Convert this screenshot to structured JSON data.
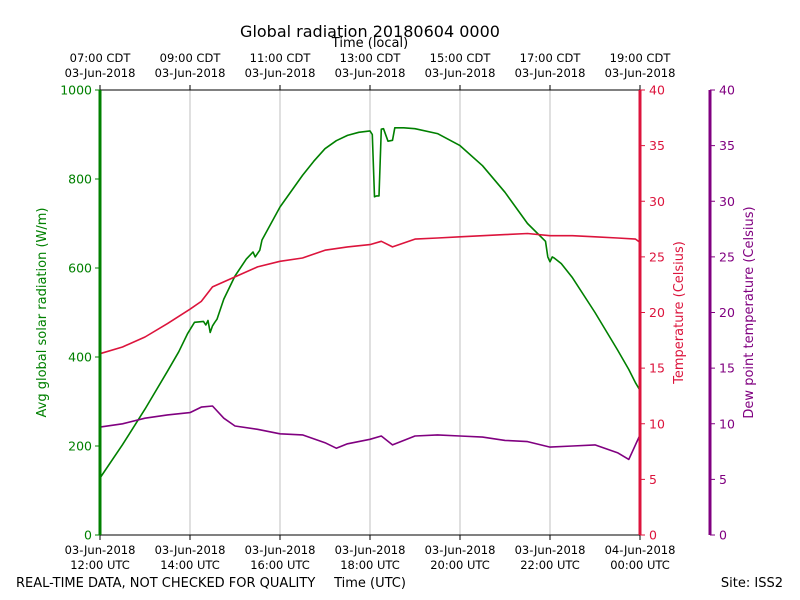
{
  "chart_data": {
    "type": "line",
    "title": "Global radiation 20180604 0000",
    "top_axis_label": "Time (local)",
    "xlabel": "Time (UTC)",
    "footer_left": "REAL-TIME DATA, NOT CHECKED FOR QUALITY",
    "footer_right": "Site: ISS2",
    "x_ticks_utc": [
      {
        "hour": 12,
        "date": "03-Jun-2018",
        "time": "12:00 UTC"
      },
      {
        "hour": 14,
        "date": "03-Jun-2018",
        "time": "14:00 UTC"
      },
      {
        "hour": 16,
        "date": "03-Jun-2018",
        "time": "16:00 UTC"
      },
      {
        "hour": 18,
        "date": "03-Jun-2018",
        "time": "18:00 UTC"
      },
      {
        "hour": 20,
        "date": "03-Jun-2018",
        "time": "20:00 UTC"
      },
      {
        "hour": 22,
        "date": "03-Jun-2018",
        "time": "22:00 UTC"
      },
      {
        "hour": 24,
        "date": "04-Jun-2018",
        "time": "00:00 UTC"
      }
    ],
    "x_ticks_local": [
      {
        "hour": 12,
        "time": "07:00 CDT",
        "date": "03-Jun-2018"
      },
      {
        "hour": 14,
        "time": "09:00 CDT",
        "date": "03-Jun-2018"
      },
      {
        "hour": 16,
        "time": "11:00 CDT",
        "date": "03-Jun-2018"
      },
      {
        "hour": 18,
        "time": "13:00 CDT",
        "date": "03-Jun-2018"
      },
      {
        "hour": 20,
        "time": "15:00 CDT",
        "date": "03-Jun-2018"
      },
      {
        "hour": 22,
        "time": "17:00 CDT",
        "date": "03-Jun-2018"
      },
      {
        "hour": 24,
        "time": "19:00 CDT",
        "date": "03-Jun-2018"
      }
    ],
    "xlim": [
      12,
      24
    ],
    "axes": {
      "radiation": {
        "label": "Avg global solar radiation (W/m)",
        "ylim": [
          0,
          1000
        ],
        "ticks": [
          0,
          200,
          400,
          600,
          800,
          1000
        ],
        "color": "#008000"
      },
      "temperature": {
        "label": "Temperature (Celsius)",
        "ylim": [
          0,
          40
        ],
        "ticks": [
          0,
          5,
          10,
          15,
          20,
          25,
          30,
          35,
          40
        ],
        "color": "#dc143c"
      },
      "dewpoint": {
        "label": "Dew point temperature (Celsius)",
        "ylim": [
          0,
          40
        ],
        "ticks": [
          0,
          5,
          10,
          15,
          20,
          25,
          30,
          35,
          40
        ],
        "color": "#800080"
      }
    },
    "series": [
      {
        "name": "Avg global solar radiation",
        "axis": "radiation",
        "color": "#008000",
        "x": [
          12.0,
          12.5,
          13.0,
          13.5,
          13.75,
          13.95,
          14.1,
          14.3,
          14.35,
          14.4,
          14.45,
          14.5,
          14.55,
          14.6,
          14.75,
          15.0,
          15.25,
          15.4,
          15.45,
          15.55,
          15.6,
          16.0,
          16.5,
          16.75,
          17.0,
          17.25,
          17.5,
          17.75,
          18.0,
          18.05,
          18.1,
          18.15,
          18.2,
          18.25,
          18.3,
          18.4,
          18.5,
          18.55,
          18.75,
          19.0,
          19.5,
          20.0,
          20.5,
          21.0,
          21.5,
          21.9,
          21.95,
          22.0,
          22.05,
          22.1,
          22.25,
          22.5,
          23.0,
          23.5,
          23.75,
          23.9,
          24.0
        ],
        "y": [
          128,
          203,
          283,
          368,
          412,
          453,
          478,
          480,
          472,
          482,
          455,
          470,
          478,
          485,
          530,
          582,
          620,
          636,
          625,
          640,
          663,
          737,
          808,
          840,
          868,
          886,
          898,
          905,
          908,
          900,
          760,
          762,
          762,
          912,
          913,
          885,
          887,
          915,
          915,
          913,
          902,
          875,
          830,
          770,
          700,
          660,
          625,
          614,
          625,
          622,
          610,
          578,
          500,
          416,
          372,
          342,
          325
        ]
      },
      {
        "name": "Temperature",
        "axis": "temperature",
        "color": "#dc143c",
        "x": [
          12.0,
          12.5,
          13.0,
          13.5,
          14.0,
          14.25,
          14.5,
          15.0,
          15.5,
          16.0,
          16.5,
          17.0,
          17.5,
          18.0,
          18.25,
          18.5,
          19.0,
          19.5,
          20.0,
          20.5,
          21.0,
          21.5,
          22.0,
          22.5,
          23.0,
          23.5,
          23.9,
          24.0
        ],
        "y": [
          16.3,
          16.9,
          17.8,
          19.0,
          20.3,
          21.0,
          22.3,
          23.2,
          24.1,
          24.6,
          24.9,
          25.6,
          25.9,
          26.1,
          26.4,
          25.9,
          26.6,
          26.7,
          26.8,
          26.9,
          27.0,
          27.1,
          26.9,
          26.9,
          26.8,
          26.7,
          26.6,
          26.3
        ]
      },
      {
        "name": "Dew point temperature",
        "axis": "dewpoint",
        "color": "#800080",
        "x": [
          12.0,
          12.5,
          13.0,
          13.5,
          14.0,
          14.25,
          14.5,
          14.75,
          15.0,
          15.5,
          16.0,
          16.5,
          17.0,
          17.25,
          17.5,
          18.0,
          18.25,
          18.5,
          19.0,
          19.5,
          20.0,
          20.5,
          21.0,
          21.5,
          22.0,
          22.5,
          23.0,
          23.5,
          23.75,
          24.0
        ],
        "y": [
          9.7,
          10.0,
          10.5,
          10.8,
          11.0,
          11.5,
          11.6,
          10.5,
          9.8,
          9.5,
          9.1,
          9.0,
          8.3,
          7.8,
          8.2,
          8.6,
          8.9,
          8.1,
          8.9,
          9.0,
          8.9,
          8.8,
          8.5,
          8.4,
          7.9,
          8.0,
          8.1,
          7.4,
          6.8,
          9.0
        ]
      }
    ]
  }
}
